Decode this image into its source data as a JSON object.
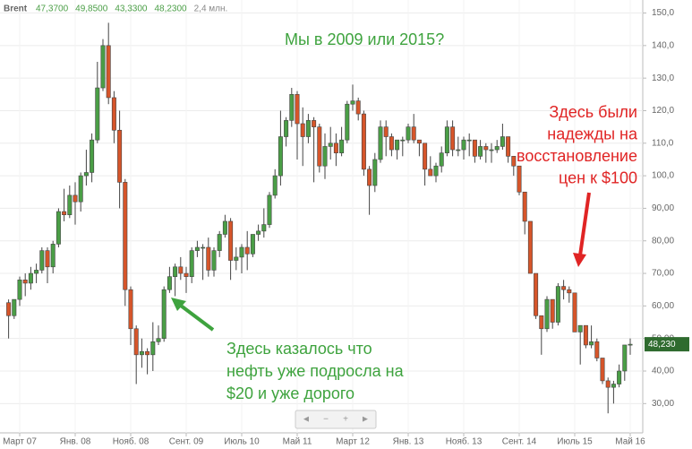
{
  "chart_data": {
    "type": "candlestick",
    "title": "Brent",
    "summary": [
      "47,3700",
      "49,8500",
      "43,3300",
      "48,2300",
      "2,4 млн."
    ],
    "up_color": "#4a9e46",
    "down_color": "#d6552a",
    "categories": [
      null,
      null,
      "Март 07",
      null,
      null,
      null,
      null,
      null,
      null,
      null,
      null,
      null,
      "Янв. 08",
      null,
      null,
      null,
      null,
      null,
      null,
      null,
      null,
      null,
      "Нояб. 08",
      null,
      null,
      null,
      null,
      null,
      null,
      null,
      null,
      null,
      "Сент. 09",
      null,
      null,
      null,
      null,
      null,
      null,
      null,
      null,
      null,
      "Июль 10",
      null,
      null,
      null,
      null,
      null,
      null,
      null,
      null,
      null,
      "Май 11",
      null,
      null,
      null,
      null,
      null,
      null,
      null,
      null,
      null,
      "Март 12",
      null,
      null,
      null,
      null,
      null,
      null,
      null,
      null,
      null,
      "Янв. 13",
      null,
      null,
      null,
      null,
      null,
      null,
      null,
      null,
      null,
      "Нояб. 13",
      null,
      null,
      null,
      null,
      null,
      null,
      null,
      null,
      null,
      "Сент. 14",
      null,
      null,
      null,
      null,
      null,
      null,
      null,
      null,
      null,
      "Июль 15",
      null,
      null,
      null,
      null,
      null,
      null,
      null,
      null,
      null,
      "Май 16"
    ],
    "ohlc": [
      [
        61,
        62,
        50,
        57
      ],
      [
        57,
        62,
        56,
        62
      ],
      [
        62,
        69,
        60,
        68
      ],
      [
        68,
        70,
        63,
        67
      ],
      [
        67,
        72,
        65,
        70
      ],
      [
        70,
        73,
        67,
        71
      ],
      [
        71,
        78,
        70,
        77
      ],
      [
        77,
        78,
        67,
        72
      ],
      [
        72,
        80,
        70,
        79
      ],
      [
        79,
        90,
        78,
        89
      ],
      [
        89,
        96,
        86,
        88
      ],
      [
        88,
        97,
        87,
        94
      ],
      [
        94,
        98,
        85,
        92
      ],
      [
        92,
        101,
        89,
        100
      ],
      [
        100,
        108,
        97,
        101
      ],
      [
        101,
        113,
        98,
        111
      ],
      [
        111,
        135,
        110,
        127
      ],
      [
        127,
        142,
        126,
        140
      ],
      [
        140,
        147,
        122,
        124
      ],
      [
        124,
        126,
        110,
        114
      ],
      [
        114,
        120,
        90,
        98
      ],
      [
        98,
        99,
        60,
        65
      ],
      [
        65,
        66,
        48,
        53
      ],
      [
        53,
        54,
        36,
        45
      ],
      [
        45,
        50,
        41,
        46
      ],
      [
        46,
        47,
        39,
        45
      ],
      [
        45,
        55,
        40,
        49
      ],
      [
        49,
        54,
        48,
        50
      ],
      [
        50,
        66,
        49,
        65
      ],
      [
        65,
        72,
        64,
        69
      ],
      [
        69,
        73,
        63,
        72
      ],
      [
        72,
        75,
        68,
        70
      ],
      [
        70,
        72,
        64,
        69
      ],
      [
        69,
        78,
        67,
        77
      ],
      [
        77,
        80,
        75,
        78
      ],
      [
        78,
        79,
        68,
        78
      ],
      [
        78,
        81,
        69,
        71
      ],
      [
        71,
        78,
        69,
        77
      ],
      [
        77,
        83,
        75,
        82
      ],
      [
        82,
        88,
        81,
        86
      ],
      [
        86,
        87,
        68,
        74
      ],
      [
        74,
        78,
        71,
        75
      ],
      [
        75,
        79,
        70,
        78
      ],
      [
        78,
        83,
        71,
        76
      ],
      [
        76,
        82,
        75,
        82
      ],
      [
        82,
        85,
        80,
        83
      ],
      [
        83,
        90,
        81,
        85
      ],
      [
        85,
        95,
        84,
        94
      ],
      [
        94,
        102,
        93,
        100
      ],
      [
        100,
        120,
        97,
        112
      ],
      [
        112,
        118,
        109,
        117
      ],
      [
        117,
        127,
        115,
        125
      ],
      [
        125,
        126,
        105,
        116
      ],
      [
        116,
        121,
        103,
        112
      ],
      [
        112,
        119,
        110,
        117
      ],
      [
        117,
        118,
        98,
        115
      ],
      [
        115,
        116,
        101,
        103
      ],
      [
        103,
        113,
        99,
        109
      ],
      [
        109,
        115,
        105,
        110
      ],
      [
        110,
        113,
        103,
        107
      ],
      [
        107,
        115,
        106,
        111
      ],
      [
        111,
        123,
        110,
        122
      ],
      [
        122,
        128,
        120,
        123
      ],
      [
        123,
        124,
        117,
        119
      ],
      [
        119,
        120,
        100,
        102
      ],
      [
        102,
        103,
        88,
        97
      ],
      [
        97,
        107,
        95,
        105
      ],
      [
        105,
        117,
        104,
        115
      ],
      [
        115,
        117,
        106,
        112
      ],
      [
        112,
        113,
        106,
        108
      ],
      [
        108,
        111,
        105,
        111
      ],
      [
        111,
        112,
        106,
        111
      ],
      [
        111,
        116,
        110,
        115
      ],
      [
        115,
        119,
        110,
        111
      ],
      [
        111,
        111,
        106,
        110
      ],
      [
        110,
        110,
        97,
        102
      ],
      [
        102,
        106,
        100,
        100
      ],
      [
        100,
        104,
        98,
        103
      ],
      [
        103,
        109,
        101,
        107
      ],
      [
        107,
        117,
        106,
        115
      ],
      [
        115,
        117,
        106,
        108
      ],
      [
        108,
        112,
        106,
        108
      ],
      [
        108,
        112,
        105,
        111
      ],
      [
        111,
        113,
        106,
        111
      ],
      [
        111,
        111,
        104,
        106
      ],
      [
        106,
        111,
        105,
        109
      ],
      [
        109,
        110,
        104,
        108
      ],
      [
        108,
        110,
        104,
        108
      ],
      [
        108,
        111,
        107,
        109
      ],
      [
        109,
        116,
        108,
        112
      ],
      [
        112,
        112,
        104,
        106
      ],
      [
        106,
        106,
        100,
        103
      ],
      [
        103,
        103,
        94,
        95
      ],
      [
        95,
        95,
        82,
        86
      ],
      [
        86,
        86,
        70,
        70
      ],
      [
        70,
        70,
        56,
        57
      ],
      [
        57,
        57,
        45,
        53
      ],
      [
        53,
        63,
        52,
        62
      ],
      [
        62,
        62,
        53,
        55
      ],
      [
        55,
        67,
        54,
        66
      ],
      [
        66,
        68,
        62,
        65
      ],
      [
        65,
        66,
        61,
        64
      ],
      [
        64,
        64,
        52,
        52
      ],
      [
        52,
        54,
        42,
        54
      ],
      [
        54,
        54,
        47,
        48
      ],
      [
        48,
        54,
        47,
        49
      ],
      [
        49,
        50,
        43,
        44
      ],
      [
        44,
        44,
        36,
        37
      ],
      [
        37,
        38,
        27,
        35
      ],
      [
        35,
        37,
        30,
        36
      ],
      [
        36,
        42,
        35,
        40
      ],
      [
        40,
        48,
        37,
        48
      ],
      [
        48,
        50,
        45,
        48.23
      ]
    ],
    "ylim": [
      21,
      154
    ],
    "yticks": [
      {
        "value": 30,
        "label": "30,00"
      },
      {
        "value": 40,
        "label": "40,00"
      },
      {
        "value": 50,
        "label": "50,00"
      },
      {
        "value": 60,
        "label": "60,00"
      },
      {
        "value": 70,
        "label": "70,00"
      },
      {
        "value": 80,
        "label": "80,00"
      },
      {
        "value": 90,
        "label": "90,00"
      },
      {
        "value": 100,
        "label": "100,0"
      },
      {
        "value": 110,
        "label": "110,0"
      },
      {
        "value": 120,
        "label": "120,0"
      },
      {
        "value": 130,
        "label": "130,0"
      },
      {
        "value": 140,
        "label": "140,0"
      },
      {
        "value": 150,
        "label": "150,0"
      }
    ],
    "grid": true,
    "last_price": {
      "value": 48.23,
      "label": "48,230"
    },
    "annotations": {
      "question": "Мы в 2009 или 2015?",
      "hope": [
        "Здесь были",
        "надежды на",
        "восстановление",
        "цен к $100"
      ],
      "cheap": [
        "Здесь казалось что",
        "нефть уже подросла на",
        "$20 и уже дорого"
      ]
    },
    "navigator": [
      "◄",
      "−",
      "+",
      "►"
    ]
  }
}
